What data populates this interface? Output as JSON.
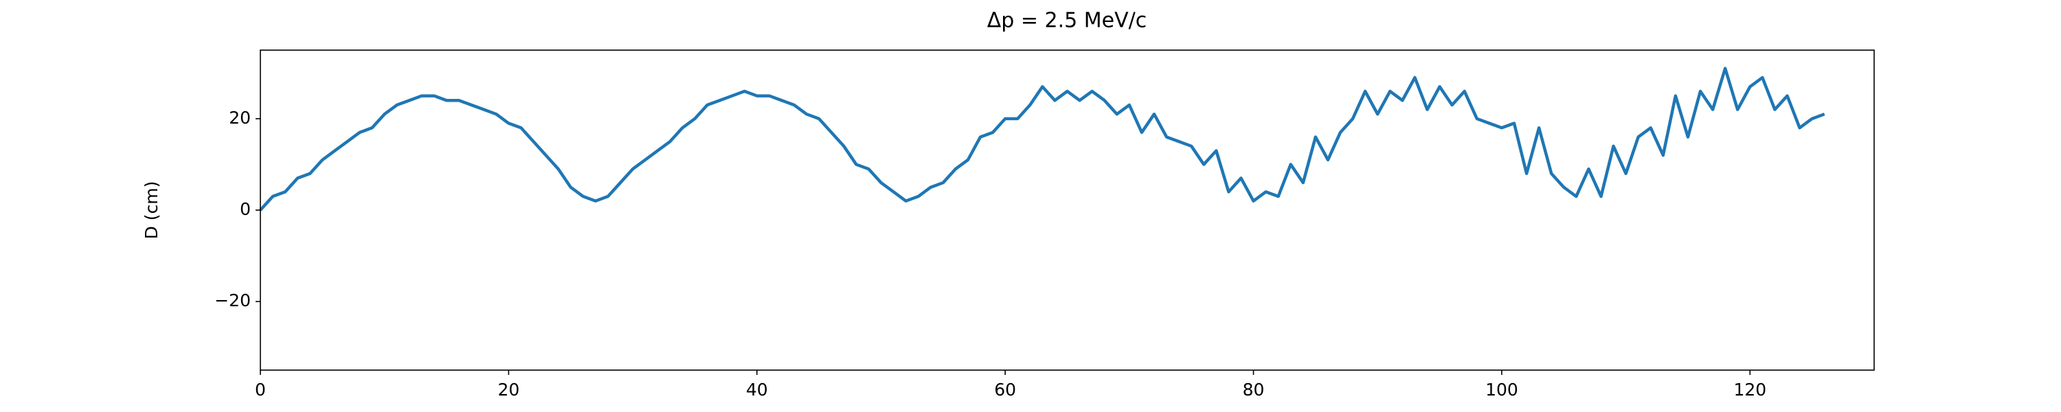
{
  "chart_data": {
    "type": "line",
    "title": "Δp = 2.5 MeV/c",
    "ylabel": "D (cm)",
    "x": [
      0,
      1,
      2,
      3,
      4,
      5,
      6,
      7,
      8,
      9,
      10,
      11,
      12,
      13,
      14,
      15,
      16,
      17,
      18,
      19,
      20,
      21,
      22,
      23,
      24,
      25,
      26,
      27,
      28,
      29,
      30,
      31,
      32,
      33,
      34,
      35,
      36,
      37,
      38,
      39,
      40,
      41,
      42,
      43,
      44,
      45,
      46,
      47,
      48,
      49,
      50,
      51,
      52,
      53,
      54,
      55,
      56,
      57,
      58,
      59,
      60,
      61,
      62,
      63,
      64,
      65,
      66,
      67,
      68,
      69,
      70,
      71,
      72,
      73,
      74,
      75,
      76,
      77,
      78,
      79,
      80,
      81,
      82,
      83,
      84,
      85,
      86,
      87,
      88,
      89,
      90,
      91,
      92,
      93,
      94,
      95,
      96,
      97,
      98,
      99,
      100,
      101,
      102,
      103,
      104,
      105,
      106,
      107,
      108,
      109,
      110,
      111,
      112,
      113,
      114,
      115,
      116,
      117,
      118,
      119,
      120,
      121,
      122,
      123,
      124,
      125,
      126
    ],
    "series": [
      {
        "name": "D",
        "color": "#1f77b4",
        "values": [
          0,
          3,
          4,
          7,
          8,
          11,
          13,
          15,
          17,
          18,
          21,
          23,
          24,
          25,
          25,
          24,
          24,
          23,
          22,
          21,
          19,
          18,
          15,
          12,
          9,
          5,
          3,
          2,
          3,
          6,
          9,
          11,
          13,
          15,
          18,
          20,
          23,
          24,
          25,
          26,
          25,
          25,
          24,
          23,
          21,
          20,
          17,
          14,
          10,
          9,
          6,
          4,
          2,
          3,
          5,
          6,
          9,
          11,
          16,
          17,
          20,
          20,
          23,
          27,
          24,
          26,
          24,
          26,
          24,
          21,
          23,
          17,
          21,
          16,
          15,
          14,
          10,
          13,
          4,
          7,
          2,
          4,
          3,
          10,
          6,
          16,
          11,
          17,
          20,
          26,
          21,
          26,
          24,
          29,
          22,
          27,
          23,
          26,
          20,
          19,
          18,
          19,
          8,
          18,
          8,
          5,
          3,
          9,
          3,
          14,
          8,
          16,
          18,
          12,
          25,
          16,
          26,
          22,
          31,
          22,
          27,
          29,
          22,
          25,
          18,
          20,
          21
        ]
      }
    ],
    "xlim": [
      0,
      130
    ],
    "xticks": [
      0,
      20,
      40,
      60,
      80,
      100,
      120
    ],
    "ylim": [
      -35,
      35
    ],
    "yticks": [
      {
        "value": -20,
        "label": "−20"
      },
      0,
      20
    ]
  }
}
